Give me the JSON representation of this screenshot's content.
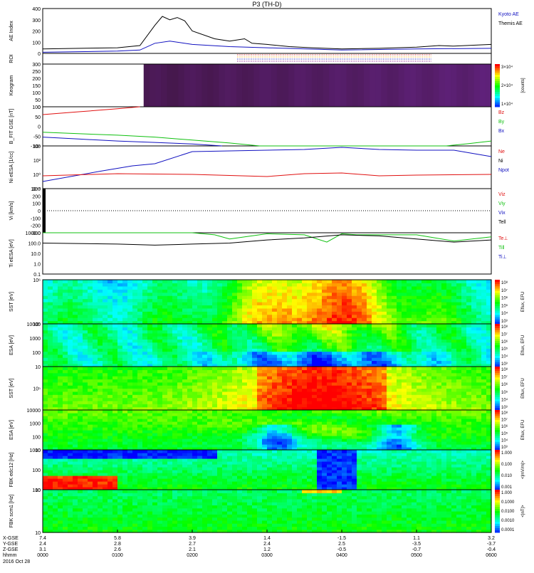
{
  "title": "P3 (TH-D)",
  "colors": {
    "black": "#000000",
    "red": "#e01010",
    "green": "#10c010",
    "blue": "#1010c0",
    "cyan": "#18b8d8"
  },
  "time_axis": {
    "ticks": [
      "0000",
      "0100",
      "0200",
      "0300",
      "0400",
      "0500",
      "0600"
    ],
    "x_gse": [
      "7.4",
      "5.8",
      "3.9",
      "1.4",
      "-1.5",
      "1.1",
      "3.2"
    ],
    "y_gse": [
      "2.4",
      "2.8",
      "2.7",
      "2.4",
      "2.5",
      "-3.5",
      "-3.7"
    ],
    "z_gse": [
      "3.1",
      "2.6",
      "2.1",
      "1.2",
      "-0.5",
      "-0.7",
      "-0.4"
    ],
    "row_labels": [
      "X-GSE",
      "Y-GSE",
      "Z-GSE",
      "hhmm"
    ],
    "date": "2016 Oct 28"
  },
  "panels": [
    {
      "key": "ae",
      "ylabel": "AE Index",
      "yticks": [
        "400",
        "300",
        "200",
        "100",
        "0"
      ],
      "legend": [
        {
          "text": "Kyoto AE",
          "color": "#1010c0"
        },
        {
          "text": "Themis AE",
          "color": "#000000"
        }
      ]
    },
    {
      "key": "roi",
      "ylabel": "ROI",
      "yticks": [],
      "legend": []
    },
    {
      "key": "keogram",
      "ylabel": "Keogram",
      "yticks": [
        "300",
        "250",
        "200",
        "150",
        "100",
        "50",
        "0"
      ],
      "colorbar": {
        "labels": [
          "3×10⁴",
          "2×10⁴",
          "1×10⁴"
        ],
        "unit": "[counts]"
      }
    },
    {
      "key": "bfit",
      "ylabel": "B_FIT GSE [nT]",
      "yticks": [
        "100",
        "50",
        "0",
        "-50",
        "-100"
      ],
      "legend": [
        {
          "text": "Bz",
          "color": "#e01010"
        },
        {
          "text": "By",
          "color": "#10c010"
        },
        {
          "text": "Bx",
          "color": "#1010c0"
        }
      ]
    },
    {
      "key": "ni",
      "ylabel": "Ni eESA [1/cc]",
      "yticks": [
        "10⁴",
        "10²",
        "10⁰",
        "10⁻²"
      ],
      "legend": [
        {
          "text": "Ne",
          "color": "#e01010"
        },
        {
          "text": "Ni",
          "color": "#000000"
        },
        {
          "text": "Npot",
          "color": "#1010c0"
        }
      ]
    },
    {
      "key": "vi",
      "ylabel": "Vi [km/s]",
      "yticks": [
        "300",
        "200",
        "100",
        "0",
        "-100",
        "-200",
        "-300"
      ],
      "legend": [
        {
          "text": "Viz",
          "color": "#e01010"
        },
        {
          "text": "Viy",
          "color": "#10c010"
        },
        {
          "text": "Vix",
          "color": "#1010c0"
        },
        {
          "text": "Tell",
          "color": "#000000"
        }
      ]
    },
    {
      "key": "ti",
      "ylabel": "Ti eESA [eV]",
      "yticks": [
        "1000.0",
        "100.0",
        "10.0",
        "1.0",
        "0.1"
      ],
      "legend": [
        {
          "text": "Te⊥",
          "color": "#e01010"
        },
        {
          "text": "Ti‖",
          "color": "#10c010"
        },
        {
          "text": "Ti⊥",
          "color": "#1010c0"
        }
      ]
    },
    {
      "key": "sst_e",
      "ylabel": "SST [eV]",
      "yticks": [
        "10⁶",
        "10⁵"
      ],
      "colorbar": {
        "labels": [
          "10⁸",
          "10⁷",
          "10⁶",
          "10⁵",
          "10⁴",
          "10³"
        ],
        "unit": "Eflux, EFU"
      }
    },
    {
      "key": "esa_e",
      "ylabel": "ESA [eV]",
      "yticks": [
        "10000",
        "1000",
        "100",
        "10"
      ],
      "colorbar": {
        "labels": [
          "10⁸",
          "10⁷",
          "10⁶",
          "10⁵",
          "10⁴",
          "10³"
        ],
        "unit": "Eflux, EFU"
      }
    },
    {
      "key": "sst_i",
      "ylabel": "SST [eV]",
      "yticks": [
        "10⁵"
      ],
      "colorbar": {
        "labels": [
          "10⁸",
          "10⁷",
          "10⁶",
          "10⁵",
          "10⁴",
          "10³"
        ],
        "unit": "Eflux, EFU"
      }
    },
    {
      "key": "esa_i",
      "ylabel": "ESA [eV]",
      "yticks": [
        "10000",
        "1000",
        "100",
        "10"
      ],
      "colorbar": {
        "labels": [
          "10⁸",
          "10⁷",
          "10⁶",
          "10⁵",
          "10⁴",
          "10³"
        ],
        "unit": "Eflux, EFU"
      }
    },
    {
      "key": "fbk_e",
      "ylabel": "FBK edc12 [Hz]",
      "yticks": [
        "1000",
        "100",
        "10"
      ],
      "colorbar": {
        "labels": [
          "1.000",
          "0.100",
          "0.010",
          "0.001"
        ],
        "unit": "<|mV/m|>"
      }
    },
    {
      "key": "fbk_b",
      "ylabel": "FBK scm1 [Hz]",
      "yticks": [
        "100",
        "10"
      ],
      "colorbar": {
        "labels": [
          "1.000",
          "0.1000",
          "0.0100",
          "0.0010",
          "0.0001"
        ],
        "unit": "<|nT|>"
      }
    }
  ],
  "chart_data": {
    "type": "line",
    "title": "P3 (TH-D)",
    "xlabel": "hhmm",
    "x_range_hours": [
      0,
      6
    ],
    "ae_index": {
      "ylim": [
        0,
        400
      ],
      "themis_ae": {
        "x": [
          0,
          0.5,
          1.0,
          1.3,
          1.5,
          1.6,
          1.7,
          1.8,
          1.9,
          2.0,
          2.3,
          2.5,
          2.7,
          2.8,
          3.0,
          3.3,
          3.6,
          4.0,
          4.5,
          5.0,
          5.3,
          5.5,
          6.0
        ],
        "y": [
          40,
          45,
          50,
          70,
          250,
          330,
          300,
          320,
          290,
          200,
          130,
          110,
          130,
          90,
          80,
          60,
          50,
          40,
          45,
          55,
          70,
          65,
          80
        ]
      },
      "kyoto_ae": {
        "x": [
          0,
          1.0,
          1.3,
          1.5,
          1.7,
          2.0,
          2.5,
          3.0,
          4.0,
          5.0,
          6.0
        ],
        "y": [
          10,
          20,
          30,
          90,
          110,
          80,
          60,
          50,
          30,
          40,
          45
        ]
      }
    },
    "b_fit": {
      "ylim": [
        -100,
        100
      ],
      "bz": {
        "x": [
          0,
          0.5,
          1.0,
          1.3
        ],
        "y": [
          60,
          75,
          90,
          100
        ]
      },
      "by": {
        "x": [
          0,
          0.5,
          1.0,
          1.5,
          2.0,
          2.5,
          2.9,
          5.4,
          5.7,
          6.0
        ],
        "y": [
          -30,
          -38,
          -45,
          -55,
          -70,
          -85,
          -100,
          -100,
          -88,
          -75
        ]
      },
      "bx": {
        "x": [
          0,
          0.5,
          1.0,
          1.5,
          2.0,
          2.4
        ],
        "y": [
          -55,
          -65,
          -75,
          -82,
          -90,
          -100
        ]
      }
    },
    "ion_density_log10": {
      "ylim": [
        -2,
        4
      ],
      "npot": {
        "x": [
          0,
          0.8,
          1.2,
          1.5,
          2.0,
          2.5,
          3.0,
          3.5,
          4.0,
          4.5,
          5.0,
          5.5,
          6.0
        ],
        "y": [
          -1,
          0.5,
          1.2,
          1.5,
          3.2,
          3.3,
          3.4,
          3.5,
          3.8,
          3.5,
          3.4,
          3.4,
          2.5
        ]
      },
      "ne": {
        "x": [
          0,
          1.0,
          2.0,
          3.0,
          3.5,
          4.0,
          4.5,
          5.0,
          6.0
        ],
        "y": [
          -0.2,
          0.1,
          0.0,
          -0.3,
          0.1,
          0.2,
          -0.2,
          -0.1,
          0.0
        ]
      }
    },
    "temperature_log10": {
      "ylim": [
        -1,
        3
      ],
      "ti_par": {
        "x": [
          0,
          0.5,
          1.0,
          1.5,
          2.0,
          2.3,
          2.5,
          3.0,
          3.5,
          3.8,
          4.0,
          4.2,
          4.5,
          5.0,
          5.5,
          6.0
        ],
        "y": [
          3.0,
          3.0,
          3.0,
          3.0,
          3.0,
          2.8,
          2.4,
          2.9,
          2.8,
          2.1,
          2.9,
          2.8,
          2.8,
          2.8,
          2.2,
          2.6
        ]
      },
      "te_perp": {
        "x": [
          0,
          1.0,
          1.5,
          2.0,
          2.5,
          3.0,
          3.5,
          4.0,
          4.5,
          5.0,
          5.5,
          6.0
        ],
        "y": [
          2.0,
          1.9,
          1.8,
          1.9,
          2.0,
          2.3,
          2.5,
          2.8,
          2.7,
          2.4,
          2.1,
          2.3
        ]
      }
    }
  }
}
